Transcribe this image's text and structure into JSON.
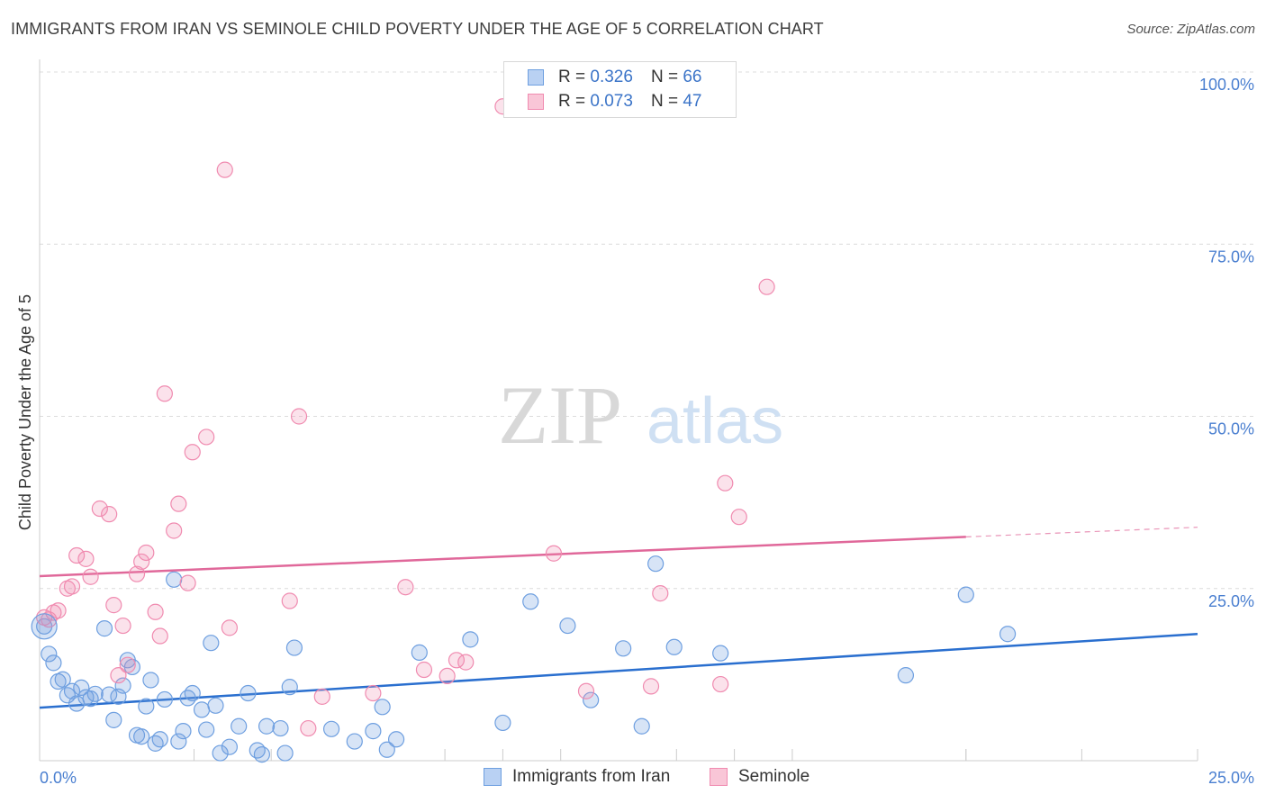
{
  "title": "IMMIGRANTS FROM IRAN VS SEMINOLE CHILD POVERTY UNDER THE AGE OF 5 CORRELATION CHART",
  "source": "Source: ZipAtlas.com",
  "watermark": {
    "zip": "ZIP",
    "atlas": "atlas"
  },
  "legend": {
    "rows": [
      {
        "r_label": "R =",
        "r_value": "0.326",
        "n_label": "N =",
        "n_value": "66"
      },
      {
        "r_label": "R =",
        "r_value": "0.073",
        "n_label": "N =",
        "n_value": "47"
      }
    ]
  },
  "chart_data": {
    "type": "scatter",
    "title": "IMMIGRANTS FROM IRAN VS SEMINOLE CHILD POVERTY UNDER THE AGE OF 5 CORRELATION CHART",
    "xlabel": "",
    "ylabel": "Child Poverty Under the Age of 5",
    "xlim": [
      0,
      25
    ],
    "ylim": [
      0,
      100
    ],
    "x_tick_labels": [
      "0.0%",
      "25.0%"
    ],
    "y_tick_labels": [
      "25.0%",
      "50.0%",
      "75.0%",
      "100.0%"
    ],
    "y_ticks": [
      25,
      50,
      75,
      100
    ],
    "grid": true,
    "legend_position": "top-center",
    "colors": {
      "iran": "#6e9fe0",
      "seminole": "#f08bb0",
      "iran_line": "#2a6fcf",
      "seminole_line": "#e0689a"
    },
    "series": [
      {
        "name": "Immigrants from Iran",
        "color": "#6e9fe0",
        "trend": {
          "x": [
            0,
            25
          ],
          "y": [
            7.7,
            18.4
          ]
        },
        "points": [
          [
            0.1,
            19.5
          ],
          [
            0.2,
            15.5
          ],
          [
            0.3,
            14.2
          ],
          [
            0.4,
            11.5
          ],
          [
            0.5,
            11.8
          ],
          [
            0.6,
            9.5
          ],
          [
            0.7,
            10.1
          ],
          [
            0.8,
            8.3
          ],
          [
            0.9,
            10.6
          ],
          [
            1.0,
            9.2
          ],
          [
            1.1,
            9.0
          ],
          [
            1.2,
            9.7
          ],
          [
            1.4,
            19.2
          ],
          [
            1.5,
            9.6
          ],
          [
            1.6,
            5.9
          ],
          [
            1.7,
            9.3
          ],
          [
            1.8,
            10.9
          ],
          [
            1.9,
            14.6
          ],
          [
            2.0,
            13.6
          ],
          [
            2.1,
            3.7
          ],
          [
            2.2,
            3.5
          ],
          [
            2.3,
            7.9
          ],
          [
            2.4,
            11.7
          ],
          [
            2.5,
            2.5
          ],
          [
            2.6,
            3.1
          ],
          [
            2.7,
            8.9
          ],
          [
            2.9,
            26.3
          ],
          [
            3.0,
            2.8
          ],
          [
            3.1,
            4.3
          ],
          [
            3.2,
            9.1
          ],
          [
            3.3,
            9.8
          ],
          [
            3.5,
            7.4
          ],
          [
            3.6,
            4.5
          ],
          [
            3.7,
            17.1
          ],
          [
            3.8,
            8.0
          ],
          [
            3.9,
            1.1
          ],
          [
            4.1,
            2.0
          ],
          [
            4.3,
            5.0
          ],
          [
            4.5,
            9.8
          ],
          [
            4.7,
            1.5
          ],
          [
            4.8,
            0.9
          ],
          [
            4.9,
            5.0
          ],
          [
            5.2,
            4.7
          ],
          [
            5.3,
            1.1
          ],
          [
            5.4,
            10.7
          ],
          [
            5.5,
            16.4
          ],
          [
            6.3,
            4.6
          ],
          [
            6.8,
            2.8
          ],
          [
            7.2,
            4.3
          ],
          [
            7.4,
            7.8
          ],
          [
            7.5,
            1.6
          ],
          [
            7.7,
            3.1
          ],
          [
            8.2,
            15.7
          ],
          [
            9.3,
            17.6
          ],
          [
            10.0,
            5.5
          ],
          [
            10.6,
            23.1
          ],
          [
            11.4,
            19.6
          ],
          [
            11.9,
            8.8
          ],
          [
            12.6,
            16.3
          ],
          [
            13.0,
            5.0
          ],
          [
            13.3,
            28.6
          ],
          [
            13.7,
            16.5
          ],
          [
            14.7,
            15.6
          ],
          [
            18.7,
            12.4
          ],
          [
            20.0,
            24.1
          ],
          [
            20.9,
            18.4
          ]
        ]
      },
      {
        "name": "Seminole",
        "color": "#f08bb0",
        "trend": {
          "x": [
            0,
            20
          ],
          "y": [
            26.8,
            32.5
          ]
        },
        "trend_extension": {
          "x": [
            20,
            25
          ],
          "y": [
            32.5,
            33.9
          ]
        },
        "points": [
          [
            0.1,
            20.8
          ],
          [
            0.2,
            20.5
          ],
          [
            0.3,
            21.5
          ],
          [
            0.4,
            21.8
          ],
          [
            0.6,
            25.0
          ],
          [
            0.7,
            25.3
          ],
          [
            0.8,
            29.8
          ],
          [
            1.0,
            29.3
          ],
          [
            1.1,
            26.7
          ],
          [
            1.3,
            36.6
          ],
          [
            1.5,
            35.8
          ],
          [
            1.6,
            22.6
          ],
          [
            1.7,
            12.4
          ],
          [
            1.8,
            19.6
          ],
          [
            1.9,
            13.9
          ],
          [
            2.1,
            27.1
          ],
          [
            2.2,
            28.9
          ],
          [
            2.3,
            30.2
          ],
          [
            2.5,
            21.6
          ],
          [
            2.6,
            18.1
          ],
          [
            2.7,
            53.3
          ],
          [
            2.9,
            33.4
          ],
          [
            3.0,
            37.3
          ],
          [
            3.2,
            25.8
          ],
          [
            3.3,
            44.8
          ],
          [
            3.6,
            47.0
          ],
          [
            4.0,
            85.8
          ],
          [
            4.1,
            19.3
          ],
          [
            5.4,
            23.2
          ],
          [
            5.6,
            50.0
          ],
          [
            5.8,
            4.7
          ],
          [
            6.1,
            9.3
          ],
          [
            7.2,
            9.8
          ],
          [
            7.9,
            25.2
          ],
          [
            8.3,
            13.2
          ],
          [
            8.8,
            12.3
          ],
          [
            9.0,
            14.6
          ],
          [
            9.2,
            14.3
          ],
          [
            10.0,
            95.0
          ],
          [
            11.1,
            30.1
          ],
          [
            11.8,
            10.1
          ],
          [
            13.2,
            10.8
          ],
          [
            13.4,
            24.3
          ],
          [
            14.7,
            11.1
          ],
          [
            14.8,
            40.3
          ],
          [
            15.1,
            35.4
          ],
          [
            15.7,
            68.8
          ]
        ]
      }
    ]
  },
  "bottom_legend": {
    "iran": "Immigrants from Iran",
    "seminole": "Seminole"
  }
}
